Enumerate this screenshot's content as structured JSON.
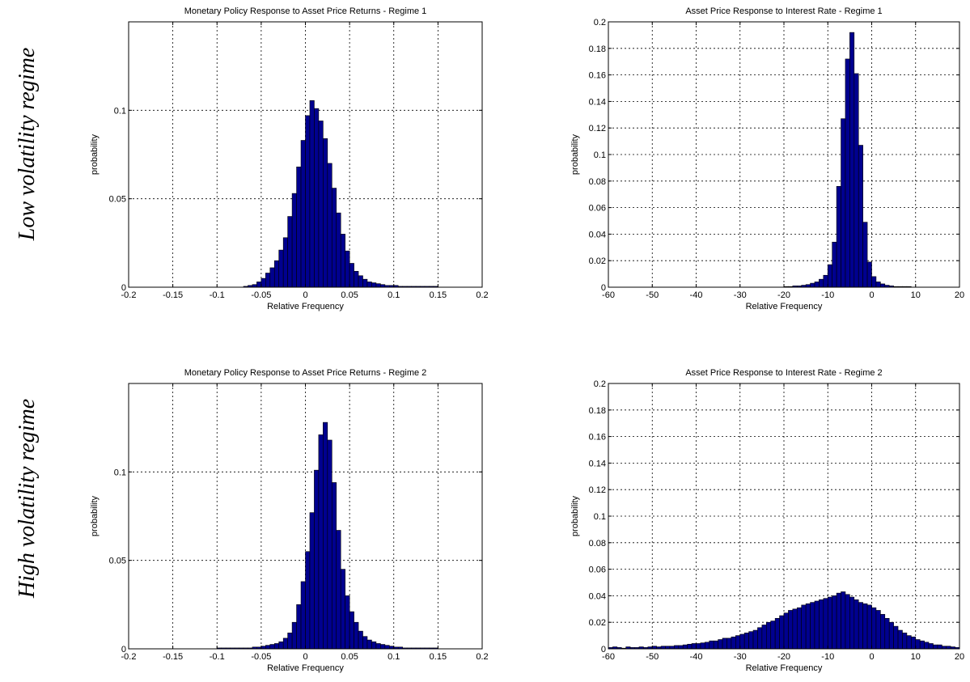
{
  "row_labels": [
    "Low volatility regime",
    "High volatility regime"
  ],
  "chart_data": [
    {
      "type": "bar",
      "title": "Monetary Policy Response to Asset Price Returns - Regime 1",
      "xlabel": "Relative Frequency",
      "ylabel": "probability",
      "xlim": [
        -0.2,
        0.2
      ],
      "ylim": [
        0,
        0.15
      ],
      "xticks": [
        -0.2,
        -0.15,
        -0.1,
        -0.05,
        0,
        0.05,
        0.1,
        0.15,
        0.2
      ],
      "xtick_labels": [
        "-0.2",
        "-0.15",
        "-0.1",
        "-0.05",
        "0",
        "0.05",
        "0.1",
        "0.15",
        "0.2"
      ],
      "yticks": [
        0,
        0.05,
        0.1
      ],
      "ytick_labels": [
        "0",
        "0.05",
        "0.1"
      ],
      "grid": true,
      "bin_start": -0.07,
      "bin_width": 0.005,
      "values": [
        0.0005,
        0.001,
        0.0015,
        0.003,
        0.005,
        0.008,
        0.011,
        0.015,
        0.021,
        0.028,
        0.04,
        0.053,
        0.068,
        0.083,
        0.097,
        0.1055,
        0.101,
        0.094,
        0.084,
        0.07,
        0.056,
        0.042,
        0.03,
        0.0205,
        0.0135,
        0.009,
        0.0065,
        0.0045,
        0.003,
        0.0025,
        0.002,
        0.0015,
        0.001,
        0.001,
        0.001,
        0.0005,
        0.0005,
        0.0005,
        0.0005,
        0.0005,
        0.0005,
        0.0005,
        0.0005,
        0.0005
      ]
    },
    {
      "type": "bar",
      "title": "Asset Price Response to Interest Rate - Regime 1",
      "xlabel": "Relative Frequency",
      "ylabel": "probability",
      "xlim": [
        -60,
        20
      ],
      "ylim": [
        0,
        0.2
      ],
      "xticks": [
        -60,
        -50,
        -40,
        -30,
        -20,
        -10,
        0,
        10,
        20
      ],
      "xtick_labels": [
        "-60",
        "-50",
        "-40",
        "-30",
        "-20",
        "-10",
        "0",
        "10",
        "20"
      ],
      "yticks": [
        0,
        0.02,
        0.04,
        0.06,
        0.08,
        0.1,
        0.12,
        0.14,
        0.16,
        0.18,
        0.2
      ],
      "ytick_labels": [
        "0",
        "0.02",
        "0.04",
        "0.06",
        "0.08",
        "0.1",
        "0.12",
        "0.14",
        "0.16",
        "0.18",
        "0.2"
      ],
      "grid": true,
      "bin_start": -20,
      "bin_width": 1,
      "values": [
        0.0005,
        0.0005,
        0.001,
        0.001,
        0.0015,
        0.002,
        0.003,
        0.004,
        0.006,
        0.009,
        0.017,
        0.034,
        0.076,
        0.127,
        0.172,
        0.192,
        0.161,
        0.107,
        0.049,
        0.019,
        0.008,
        0.004,
        0.0025,
        0.0015,
        0.001,
        0.0005,
        0.0005,
        0.0005,
        0.0005
      ]
    },
    {
      "type": "bar",
      "title": "Monetary Policy Response to Asset Price Returns - Regime 2",
      "xlabel": "Relative Frequency",
      "ylabel": "probability",
      "xlim": [
        -0.2,
        0.2
      ],
      "ylim": [
        0,
        0.15
      ],
      "xticks": [
        -0.2,
        -0.15,
        -0.1,
        -0.05,
        0,
        0.05,
        0.1,
        0.15,
        0.2
      ],
      "xtick_labels": [
        "-0.2",
        "-0.15",
        "-0.1",
        "-0.05",
        "0",
        "0.05",
        "0.1",
        "0.15",
        "0.2"
      ],
      "yticks": [
        0,
        0.05,
        0.1
      ],
      "ytick_labels": [
        "0",
        "0.05",
        "0.1"
      ],
      "grid": true,
      "bin_start": -0.1,
      "bin_width": 0.005,
      "values": [
        0.0005,
        0.0005,
        0.0005,
        0.0005,
        0.0005,
        0.0005,
        0.0005,
        0.0005,
        0.001,
        0.001,
        0.0015,
        0.002,
        0.0025,
        0.003,
        0.004,
        0.006,
        0.009,
        0.015,
        0.025,
        0.038,
        0.055,
        0.077,
        0.101,
        0.121,
        0.128,
        0.118,
        0.094,
        0.067,
        0.045,
        0.03,
        0.021,
        0.015,
        0.01,
        0.007,
        0.005,
        0.004,
        0.003,
        0.0025,
        0.002,
        0.0015,
        0.001,
        0.001,
        0.0005,
        0.0005,
        0.0005,
        0.0005,
        0.0005,
        0.0005,
        0.0005,
        0.0005
      ]
    },
    {
      "type": "bar",
      "title": "Asset Price Response to Interest Rate - Regime 2",
      "xlabel": "Relative Frequency",
      "ylabel": "probability",
      "xlim": [
        -60,
        20
      ],
      "ylim": [
        0,
        0.2
      ],
      "xticks": [
        -60,
        -50,
        -40,
        -30,
        -20,
        -10,
        0,
        10,
        20
      ],
      "xtick_labels": [
        "-60",
        "-50",
        "-40",
        "-30",
        "-20",
        "-10",
        "0",
        "10",
        "20"
      ],
      "yticks": [
        0,
        0.02,
        0.04,
        0.06,
        0.08,
        0.1,
        0.12,
        0.14,
        0.16,
        0.18,
        0.2
      ],
      "ytick_labels": [
        "0",
        "0.02",
        "0.04",
        "0.06",
        "0.08",
        "0.1",
        "0.12",
        "0.14",
        "0.16",
        "0.18",
        "0.2"
      ],
      "grid": true,
      "bin_start": -60,
      "bin_width": 1,
      "values": [
        0.001,
        0.0015,
        0.001,
        0.0005,
        0.0015,
        0.001,
        0.001,
        0.0015,
        0.001,
        0.0015,
        0.002,
        0.0015,
        0.002,
        0.002,
        0.002,
        0.0025,
        0.0025,
        0.003,
        0.0035,
        0.004,
        0.004,
        0.0045,
        0.005,
        0.006,
        0.006,
        0.007,
        0.008,
        0.008,
        0.009,
        0.01,
        0.011,
        0.012,
        0.013,
        0.014,
        0.016,
        0.018,
        0.02,
        0.021,
        0.023,
        0.025,
        0.027,
        0.029,
        0.03,
        0.031,
        0.033,
        0.034,
        0.035,
        0.036,
        0.037,
        0.038,
        0.039,
        0.04,
        0.042,
        0.043,
        0.041,
        0.039,
        0.037,
        0.035,
        0.034,
        0.033,
        0.031,
        0.029,
        0.026,
        0.023,
        0.02,
        0.017,
        0.014,
        0.012,
        0.01,
        0.009,
        0.007,
        0.006,
        0.005,
        0.004,
        0.003,
        0.003,
        0.002,
        0.002,
        0.0015,
        0.001
      ]
    }
  ]
}
